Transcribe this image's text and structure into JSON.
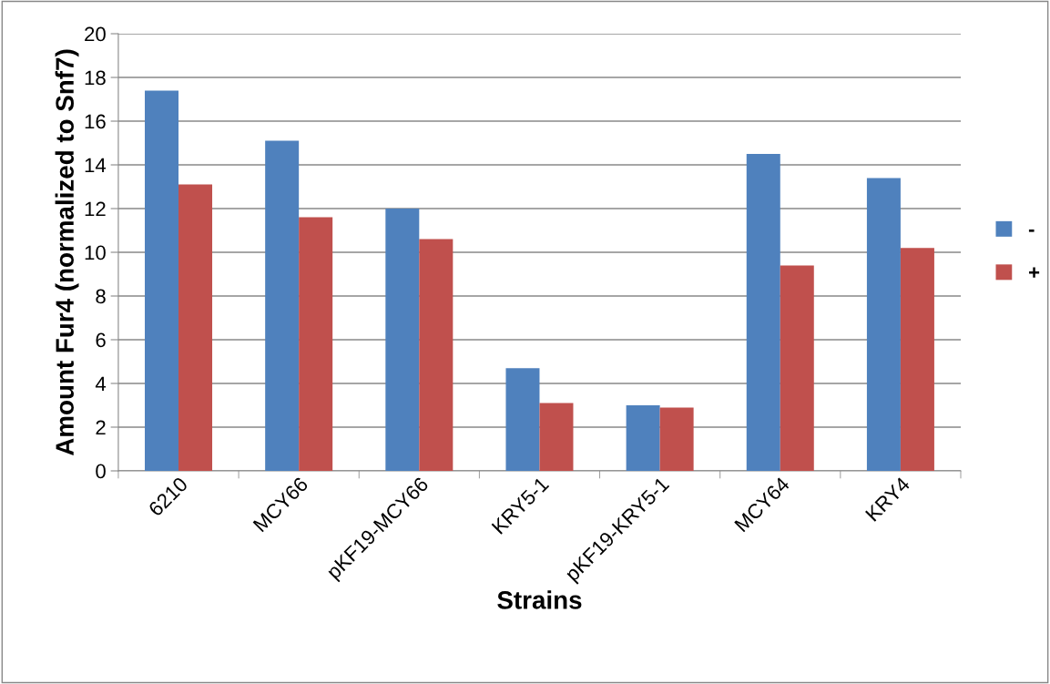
{
  "chart_data": {
    "type": "bar",
    "xlabel": "Strains",
    "ylabel": "Amount Fur4 (normalized to Snf7)",
    "categories": [
      "6210",
      "MCY66",
      "pKF19-MCY66",
      "KRY5-1",
      "pKF19-KRY5-1",
      "MCY64",
      "KRY4"
    ],
    "series": [
      {
        "name": "-",
        "color": "#4f81bd",
        "values": [
          17.4,
          15.1,
          12.0,
          4.7,
          3.0,
          14.5,
          13.4
        ]
      },
      {
        "name": "+",
        "color": "#c0504d",
        "values": [
          13.1,
          11.6,
          10.6,
          3.1,
          2.9,
          9.4,
          10.2
        ]
      }
    ],
    "ylim": [
      0,
      20
    ],
    "yticks": [
      0,
      2,
      4,
      6,
      8,
      10,
      12,
      14,
      16,
      18,
      20
    ],
    "grid": "y",
    "legend": "right"
  }
}
